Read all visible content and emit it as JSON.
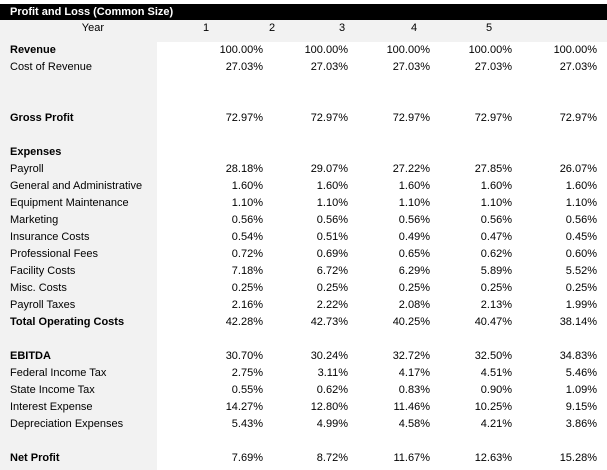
{
  "title": "Profit and Loss (Common Size)",
  "year_label": "Year",
  "years": [
    "1",
    "2",
    "3",
    "4",
    "5"
  ],
  "rows": [
    {
      "label": "Revenue",
      "bold": true,
      "values": [
        "100.00%",
        "100.00%",
        "100.00%",
        "100.00%",
        "100.00%"
      ]
    },
    {
      "label": "Cost of Revenue",
      "values": [
        "27.03%",
        "27.03%",
        "27.03%",
        "27.03%",
        "27.03%"
      ]
    },
    {
      "label": "",
      "values": []
    },
    {
      "label": "",
      "values": []
    },
    {
      "label": "Gross Profit",
      "bold": true,
      "values": [
        "72.97%",
        "72.97%",
        "72.97%",
        "72.97%",
        "72.97%"
      ]
    },
    {
      "label": "",
      "values": []
    },
    {
      "label": "Expenses",
      "bold": true,
      "values": []
    },
    {
      "label": "Payroll",
      "values": [
        "28.18%",
        "29.07%",
        "27.22%",
        "27.85%",
        "26.07%"
      ]
    },
    {
      "label": "General and Administrative",
      "values": [
        "1.60%",
        "1.60%",
        "1.60%",
        "1.60%",
        "1.60%"
      ]
    },
    {
      "label": "Equipment Maintenance",
      "values": [
        "1.10%",
        "1.10%",
        "1.10%",
        "1.10%",
        "1.10%"
      ]
    },
    {
      "label": "Marketing",
      "values": [
        "0.56%",
        "0.56%",
        "0.56%",
        "0.56%",
        "0.56%"
      ]
    },
    {
      "label": "Insurance Costs",
      "values": [
        "0.54%",
        "0.51%",
        "0.49%",
        "0.47%",
        "0.45%"
      ]
    },
    {
      "label": "Professional Fees",
      "values": [
        "0.72%",
        "0.69%",
        "0.65%",
        "0.62%",
        "0.60%"
      ]
    },
    {
      "label": "Facility Costs",
      "values": [
        "7.18%",
        "6.72%",
        "6.29%",
        "5.89%",
        "5.52%"
      ]
    },
    {
      "label": "Misc. Costs",
      "values": [
        "0.25%",
        "0.25%",
        "0.25%",
        "0.25%",
        "0.25%"
      ]
    },
    {
      "label": "Payroll Taxes",
      "values": [
        "2.16%",
        "2.22%",
        "2.08%",
        "2.13%",
        "1.99%"
      ]
    },
    {
      "label": "Total Operating Costs",
      "bold": true,
      "values": [
        "42.28%",
        "42.73%",
        "40.25%",
        "40.47%",
        "38.14%"
      ]
    },
    {
      "label": "",
      "values": []
    },
    {
      "label": "EBITDA",
      "bold": true,
      "values": [
        "30.70%",
        "30.24%",
        "32.72%",
        "32.50%",
        "34.83%"
      ]
    },
    {
      "label": "Federal Income Tax",
      "values": [
        "2.75%",
        "3.11%",
        "4.17%",
        "4.51%",
        "5.46%"
      ]
    },
    {
      "label": "State Income Tax",
      "values": [
        "0.55%",
        "0.62%",
        "0.83%",
        "0.90%",
        "1.09%"
      ]
    },
    {
      "label": "Interest Expense",
      "values": [
        "14.27%",
        "12.80%",
        "11.46%",
        "10.25%",
        "9.15%"
      ]
    },
    {
      "label": "Depreciation Expenses",
      "values": [
        "5.43%",
        "4.99%",
        "4.58%",
        "4.21%",
        "3.86%"
      ]
    },
    {
      "label": "",
      "values": []
    },
    {
      "label": "Net Profit",
      "bold": true,
      "values": [
        "7.69%",
        "8.72%",
        "11.67%",
        "12.63%",
        "15.28%"
      ]
    }
  ]
}
